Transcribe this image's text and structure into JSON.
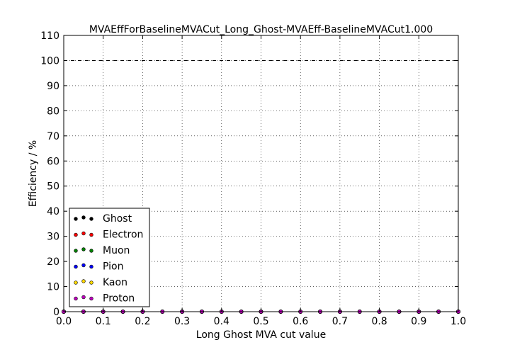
{
  "chart_data": {
    "type": "scatter",
    "title": "MVAEffForBaselineMVACut_Long_Ghost-MVAEff-BaselineMVACut1.000",
    "xlabel": "Long Ghost MVA cut value",
    "ylabel": "Efficiency / %",
    "xlim": [
      0.0,
      1.0
    ],
    "ylim": [
      0,
      110
    ],
    "xticks": [
      "0.0",
      "0.1",
      "0.2",
      "0.3",
      "0.4",
      "0.5",
      "0.6",
      "0.7",
      "0.8",
      "0.9",
      "1.0"
    ],
    "yticks": [
      "0",
      "10",
      "20",
      "30",
      "40",
      "50",
      "60",
      "70",
      "80",
      "90",
      "100",
      "110"
    ],
    "grid": true,
    "reference_line": {
      "y": 100,
      "style": "dashed",
      "color": "#000000"
    },
    "legend_position": "lower-left",
    "x": [
      0.0,
      0.05,
      0.1,
      0.15,
      0.2,
      0.25,
      0.3,
      0.35,
      0.4,
      0.45,
      0.5,
      0.55,
      0.6,
      0.65,
      0.7,
      0.75,
      0.8,
      0.85,
      0.9,
      0.95,
      1.0
    ],
    "series": [
      {
        "name": "Ghost",
        "color": "#000000",
        "values": [
          0,
          0,
          0,
          0,
          0,
          0,
          0,
          0,
          0,
          0,
          0,
          0,
          0,
          0,
          0,
          0,
          0,
          0,
          0,
          0,
          0
        ]
      },
      {
        "name": "Electron",
        "color": "#ff0000",
        "values": [
          0,
          0,
          0,
          0,
          0,
          0,
          0,
          0,
          0,
          0,
          0,
          0,
          0,
          0,
          0,
          0,
          0,
          0,
          0,
          0,
          0
        ]
      },
      {
        "name": "Muon",
        "color": "#008000",
        "values": [
          0,
          0,
          0,
          0,
          0,
          0,
          0,
          0,
          0,
          0,
          0,
          0,
          0,
          0,
          0,
          0,
          0,
          0,
          0,
          0,
          0
        ]
      },
      {
        "name": "Pion",
        "color": "#0000ff",
        "values": [
          0,
          0,
          0,
          0,
          0,
          0,
          0,
          0,
          0,
          0,
          0,
          0,
          0,
          0,
          0,
          0,
          0,
          0,
          0,
          0,
          0
        ]
      },
      {
        "name": "Kaon",
        "color": "#ffd700",
        "values": [
          0,
          0,
          0,
          0,
          0,
          0,
          0,
          0,
          0,
          0,
          0,
          0,
          0,
          0,
          0,
          0,
          0,
          0,
          0,
          0,
          0
        ]
      },
      {
        "name": "Proton",
        "color": "#bf00bf",
        "values": [
          0,
          0,
          0,
          0,
          0,
          0,
          0,
          0,
          0,
          0,
          0,
          0,
          0,
          0,
          0,
          0,
          0,
          0,
          0,
          0,
          0
        ]
      }
    ]
  }
}
